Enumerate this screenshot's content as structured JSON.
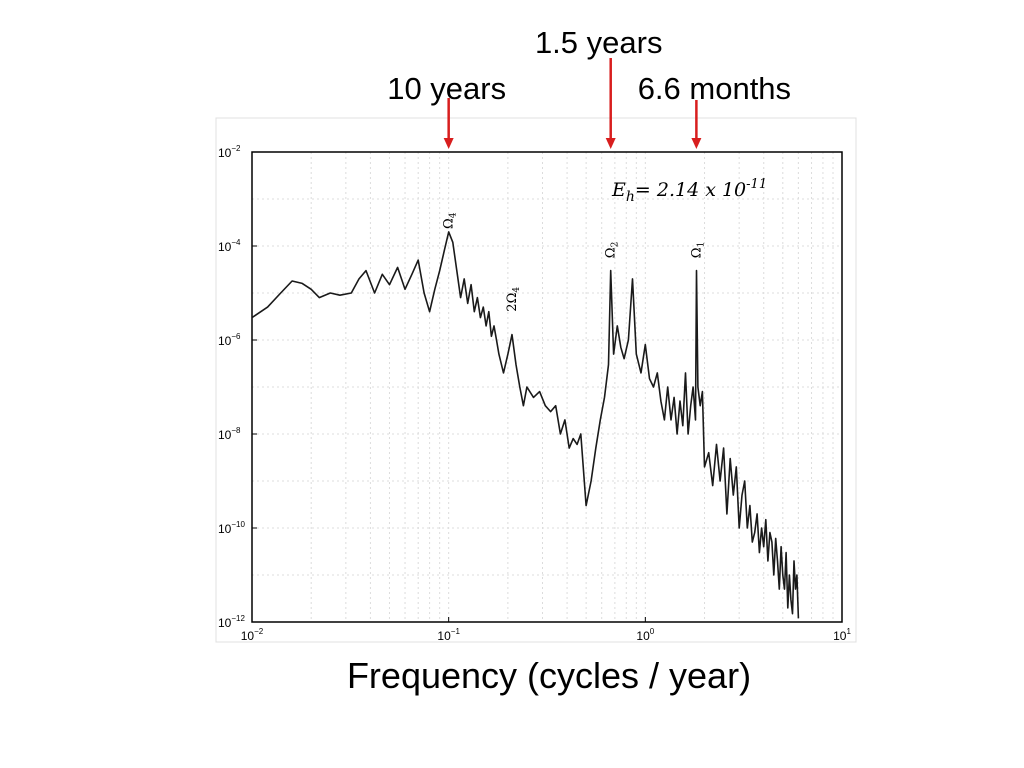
{
  "period_labels": [
    {
      "text": "1.5 years",
      "freq": 0.6667
    },
    {
      "text": "10 years",
      "freq": 0.1
    },
    {
      "text": "6.6 months",
      "freq": 1.818
    }
  ],
  "xaxis_title": "Frequency  (cycles / year)",
  "chart_data": {
    "type": "line",
    "xscale": "log",
    "yscale": "log",
    "xlim": [
      0.01,
      10
    ],
    "ylim": [
      1e-12,
      0.01
    ],
    "grid": true,
    "xticks": [
      {
        "base": "10",
        "exp": "−2",
        "value": 0.01
      },
      {
        "base": "10",
        "exp": "−1",
        "value": 0.1
      },
      {
        "base": "10",
        "exp": "0",
        "value": 1
      },
      {
        "base": "10",
        "exp": "1",
        "value": 10
      }
    ],
    "yticks": [
      {
        "base": "10",
        "exp": "−2",
        "value": 0.01
      },
      {
        "base": "10",
        "exp": "−4",
        "value": 0.0001
      },
      {
        "base": "10",
        "exp": "−6",
        "value": 1e-06
      },
      {
        "base": "10",
        "exp": "−8",
        "value": 1e-08
      },
      {
        "base": "10",
        "exp": "−10",
        "value": 1e-10
      },
      {
        "base": "10",
        "exp": "−12",
        "value": 1e-12
      }
    ],
    "annotations": [
      {
        "main": "Ω",
        "sub": "4",
        "freq": 0.1,
        "y": 0.00023
      },
      {
        "main": "2Ω",
        "sub": "4",
        "freq": 0.21,
        "y": 4e-06
      },
      {
        "main": "Ω",
        "sub": "2",
        "freq": 0.667,
        "y": 5.5e-05
      },
      {
        "main": "Ω",
        "sub": "1",
        "freq": 1.82,
        "y": 5.5e-05
      }
    ],
    "eh": {
      "prefix": "E",
      "sub": "h",
      "value": "= 2.14 x 10",
      "exp": "-11"
    },
    "series": [
      {
        "x": [
          0.01,
          0.012,
          0.014,
          0.016,
          0.018,
          0.02,
          0.022,
          0.025,
          0.028,
          0.032,
          0.035,
          0.038,
          0.042,
          0.046,
          0.05,
          0.055,
          0.06,
          0.065,
          0.07,
          0.075,
          0.08,
          0.085,
          0.09,
          0.095,
          0.1,
          0.105,
          0.11,
          0.115,
          0.12,
          0.125,
          0.13,
          0.135,
          0.14,
          0.145,
          0.15,
          0.155,
          0.16,
          0.165,
          0.17,
          0.175,
          0.18,
          0.19,
          0.2,
          0.21,
          0.22,
          0.23,
          0.24,
          0.25,
          0.27,
          0.29,
          0.31,
          0.33,
          0.35,
          0.37,
          0.39,
          0.41,
          0.43,
          0.45,
          0.47,
          0.5,
          0.53,
          0.56,
          0.59,
          0.62,
          0.65,
          0.667,
          0.69,
          0.72,
          0.75,
          0.78,
          0.82,
          0.86,
          0.9,
          0.95,
          1.0,
          1.05,
          1.1,
          1.15,
          1.2,
          1.25,
          1.3,
          1.35,
          1.4,
          1.45,
          1.5,
          1.55,
          1.6,
          1.65,
          1.7,
          1.75,
          1.8,
          1.82,
          1.85,
          1.9,
          1.95,
          2.0,
          2.1,
          2.2,
          2.3,
          2.4,
          2.5,
          2.6,
          2.7,
          2.8,
          2.9,
          3.0,
          3.1,
          3.2,
          3.3,
          3.4,
          3.5,
          3.6,
          3.7,
          3.8,
          3.9,
          4.0,
          4.1,
          4.2,
          4.3,
          4.4,
          4.5,
          4.6,
          4.7,
          4.8,
          4.9,
          5.0,
          5.1,
          5.2,
          5.3,
          5.4,
          5.5,
          5.6,
          5.7,
          5.8,
          5.9,
          6.0
        ],
        "y": [
          3e-06,
          5e-06,
          1e-05,
          1.8e-05,
          1.6e-05,
          1.2e-05,
          8e-06,
          1e-05,
          9e-06,
          1e-05,
          2e-05,
          3e-05,
          1e-05,
          2.5e-05,
          1.5e-05,
          3.5e-05,
          1.2e-05,
          2.5e-05,
          5e-05,
          1e-05,
          4e-06,
          1.2e-05,
          3e-05,
          8e-05,
          0.0002,
          0.00012,
          3e-05,
          8e-06,
          2e-05,
          6e-06,
          1.5e-05,
          4e-06,
          8e-06,
          3e-06,
          5e-06,
          2e-06,
          4e-06,
          1.2e-06,
          2e-06,
          1e-06,
          5e-07,
          2e-07,
          5e-07,
          1.3e-06,
          3e-07,
          1e-07,
          4e-08,
          1e-07,
          6e-08,
          8e-08,
          4e-08,
          3e-08,
          4e-08,
          1e-08,
          2e-08,
          5e-09,
          8e-09,
          6e-09,
          1e-08,
          3e-10,
          1e-09,
          5e-09,
          2e-08,
          6e-08,
          3e-07,
          3e-05,
          5e-07,
          2e-06,
          7e-07,
          4e-07,
          1e-06,
          2e-05,
          5e-07,
          2e-07,
          8e-07,
          1.5e-07,
          1e-07,
          2e-07,
          5e-08,
          2e-08,
          1e-07,
          2e-08,
          6e-08,
          1e-08,
          5e-08,
          1.5e-08,
          2e-07,
          1e-08,
          4e-08,
          1e-07,
          2e-08,
          3e-05,
          1e-07,
          4e-08,
          8e-08,
          2e-09,
          4e-09,
          8e-10,
          6e-09,
          1e-09,
          5e-09,
          2e-10,
          3e-09,
          5e-10,
          2e-09,
          1e-10,
          5e-10,
          1e-09,
          1e-10,
          3e-10,
          5e-11,
          8e-11,
          2e-10,
          3e-11,
          1e-10,
          4e-11,
          1.5e-10,
          2e-11,
          8e-11,
          5e-11,
          1e-11,
          6e-11,
          2e-11,
          5e-12,
          4e-11,
          1e-11,
          5e-12,
          3e-11,
          2e-12,
          1e-11,
          3e-12,
          1.5e-12,
          2e-11,
          5e-12,
          1e-11,
          1.2e-12
        ]
      }
    ]
  }
}
